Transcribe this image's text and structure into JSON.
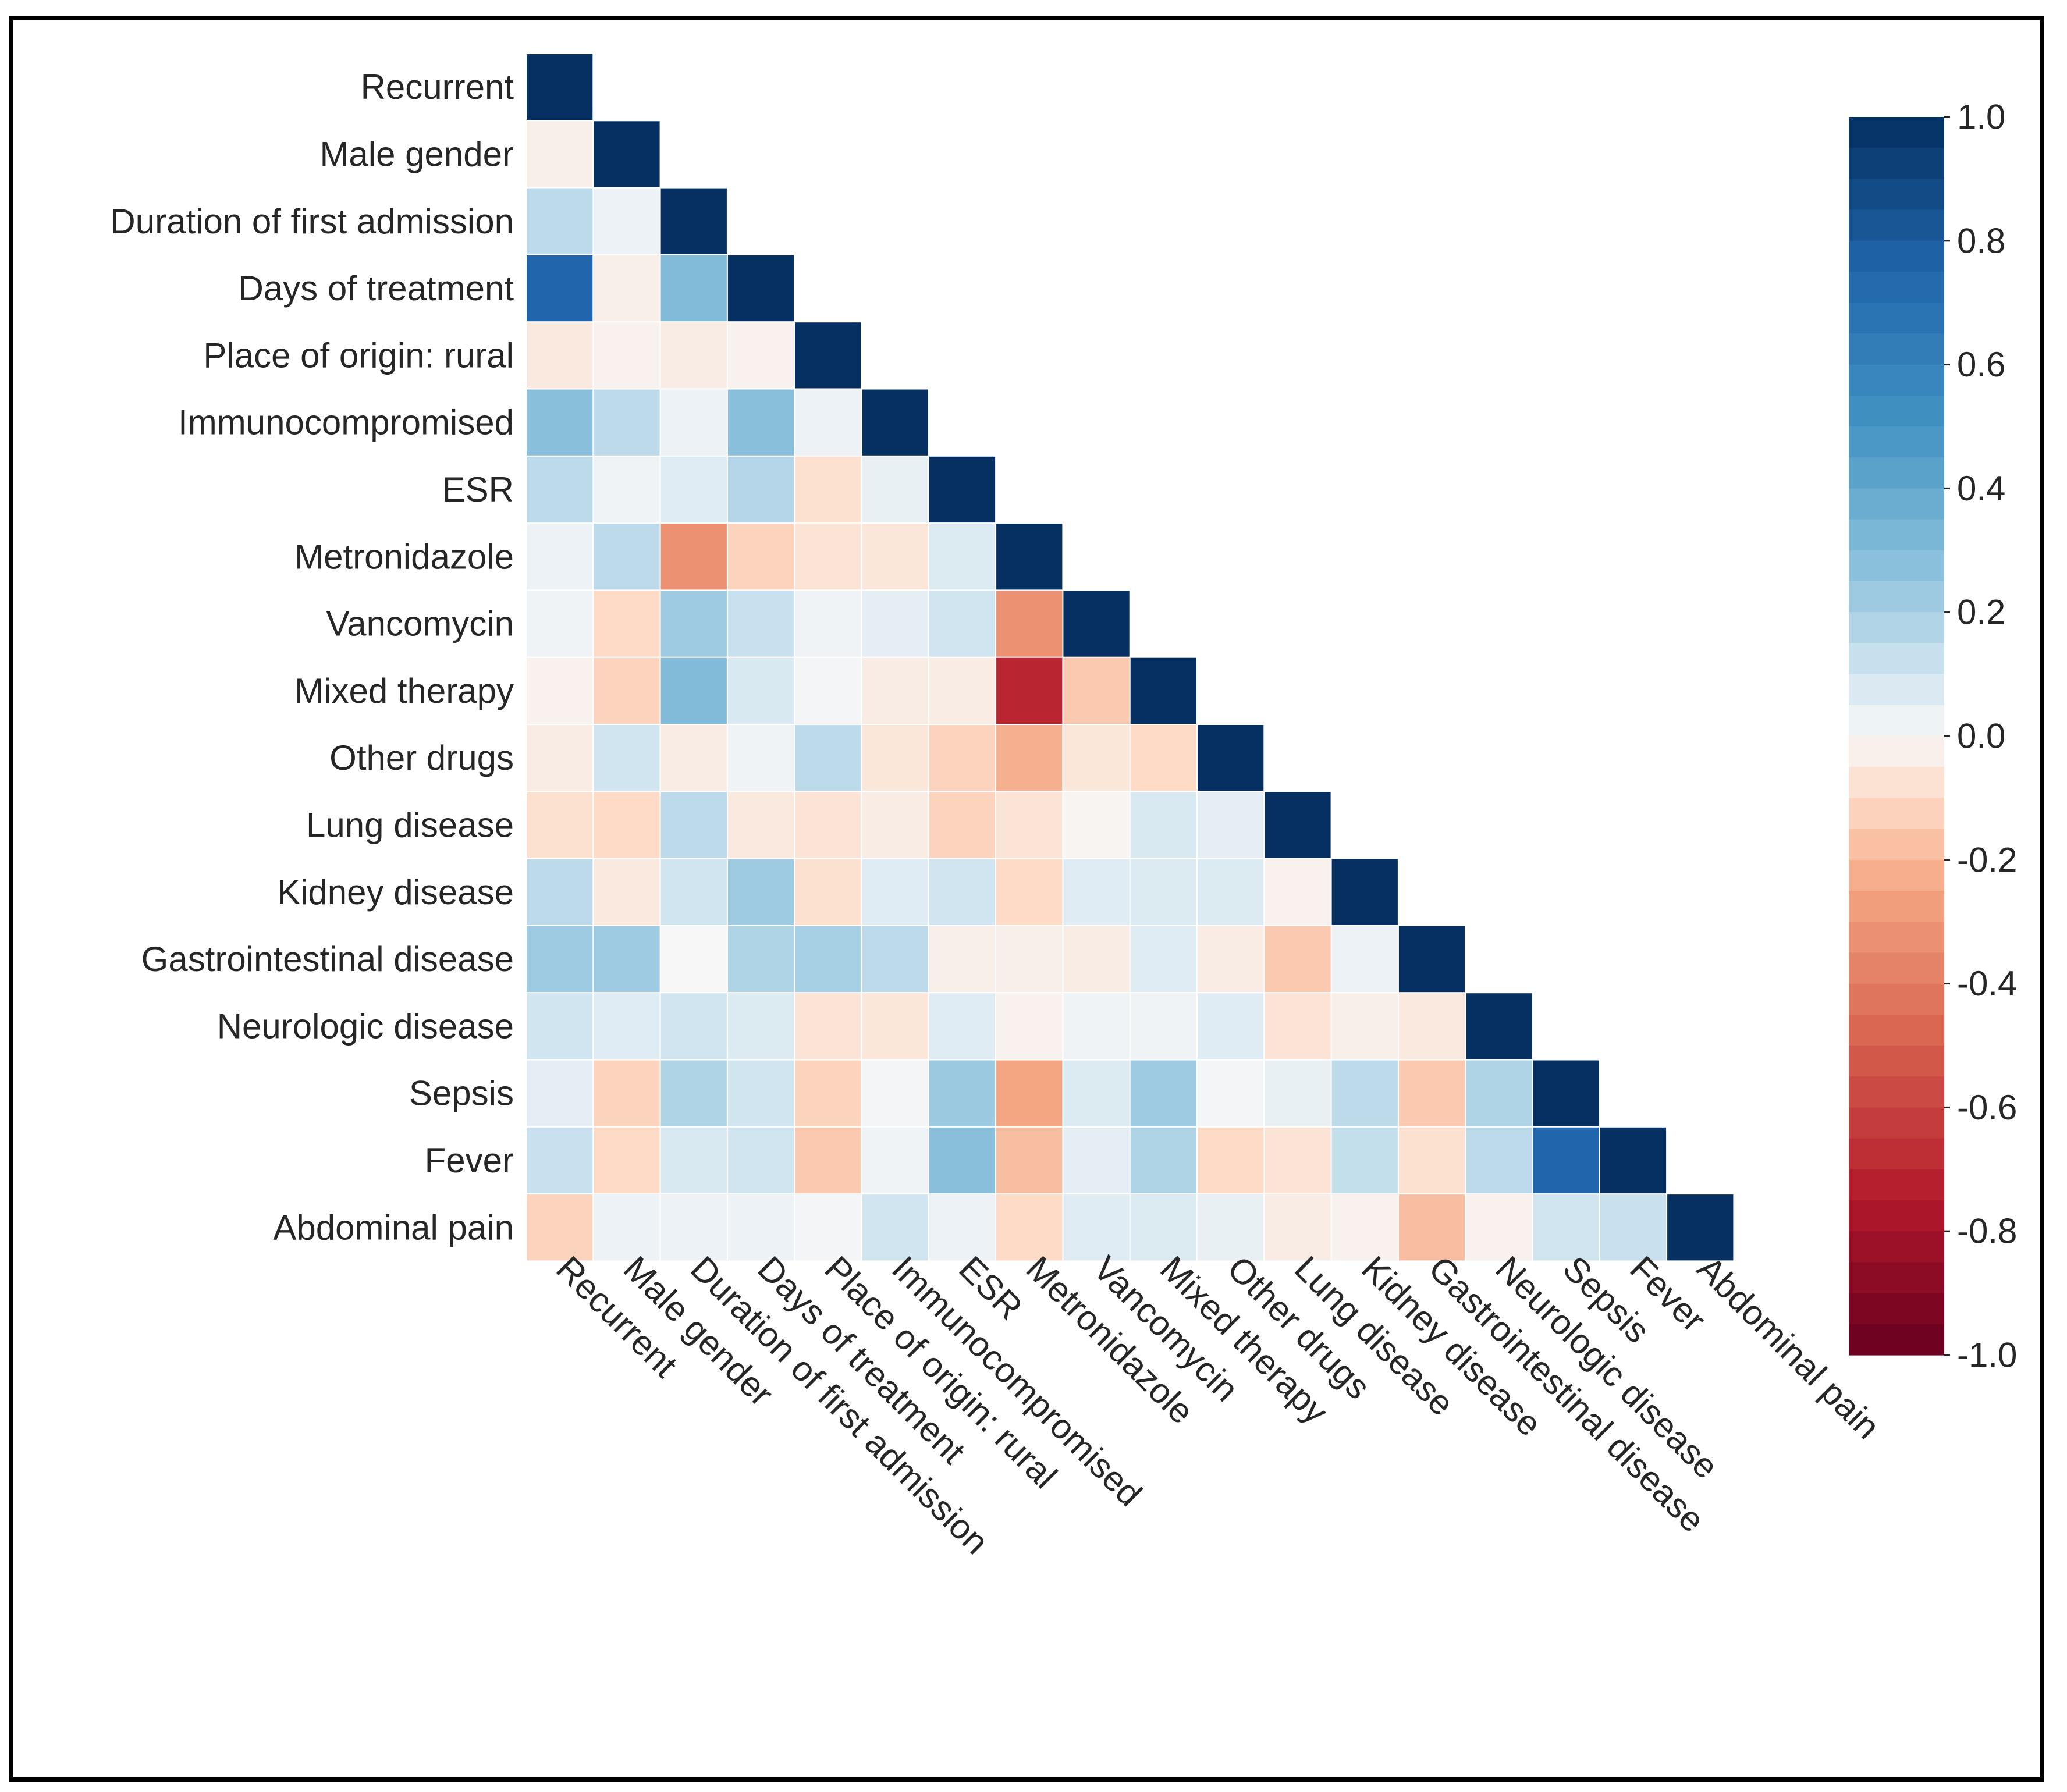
{
  "chart_data": {
    "type": "heatmap",
    "title": "",
    "xlabel": "",
    "ylabel": "",
    "variables": [
      "Recurrent",
      "Male gender",
      "Duration of first admission",
      "Days of treatment",
      "Place of origin: rural",
      "Immunocompromised",
      "ESR",
      "Metronidazole",
      "Vancomycin",
      "Mixed therapy",
      "Other drugs",
      "Lung disease",
      "Kidney disease",
      "Gastrointestinal disease",
      "Neurologic disease",
      "Sepsis",
      "Fever",
      "Abdominal pain"
    ],
    "mask": "upper triangle hidden (lower triangle including diagonal shown)",
    "values": [
      [
        1.0
      ],
      [
        -0.03,
        1.0
      ],
      [
        0.15,
        0.03,
        1.0
      ],
      [
        0.75,
        -0.03,
        0.3,
        1.0
      ],
      [
        -0.05,
        -0.02,
        -0.04,
        -0.02,
        1.0
      ],
      [
        0.28,
        0.15,
        0.03,
        0.28,
        0.03,
        1.0
      ],
      [
        0.15,
        0.02,
        0.06,
        0.17,
        -0.08,
        0.04,
        1.0
      ],
      [
        0.03,
        0.15,
        -0.32,
        -0.12,
        -0.07,
        -0.06,
        0.07,
        1.0
      ],
      [
        0.02,
        -0.1,
        0.22,
        0.12,
        0.02,
        0.05,
        0.1,
        -0.32,
        1.0
      ],
      [
        -0.02,
        -0.12,
        0.3,
        0.08,
        0.01,
        -0.04,
        -0.04,
        -0.7,
        -0.15,
        1.0
      ],
      [
        -0.04,
        0.1,
        -0.04,
        0.02,
        0.15,
        -0.06,
        -0.12,
        -0.22,
        -0.06,
        -0.1,
        1.0
      ],
      [
        -0.08,
        -0.1,
        0.15,
        -0.05,
        -0.07,
        -0.04,
        -0.12,
        -0.07,
        -0.01,
        0.08,
        0.05,
        1.0
      ],
      [
        0.15,
        -0.05,
        0.1,
        0.22,
        -0.08,
        0.06,
        0.1,
        -0.1,
        0.06,
        0.07,
        0.07,
        -0.02,
        1.0
      ],
      [
        0.22,
        0.22,
        0.0,
        0.18,
        0.2,
        0.15,
        -0.03,
        -0.03,
        -0.04,
        0.06,
        -0.04,
        -0.15,
        0.03,
        1.0
      ],
      [
        0.1,
        0.06,
        0.1,
        0.07,
        -0.07,
        -0.06,
        0.06,
        -0.02,
        0.02,
        0.02,
        0.06,
        -0.07,
        -0.03,
        -0.05,
        1.0
      ],
      [
        0.05,
        -0.12,
        0.18,
        0.1,
        -0.12,
        0.01,
        0.23,
        -0.25,
        0.07,
        0.22,
        0.01,
        0.04,
        0.15,
        -0.15,
        0.18,
        1.0
      ],
      [
        0.12,
        -0.1,
        0.08,
        0.1,
        -0.15,
        0.02,
        0.28,
        -0.18,
        0.05,
        0.18,
        -0.1,
        -0.07,
        0.13,
        -0.08,
        0.15,
        0.75,
        1.0
      ],
      [
        -0.12,
        0.03,
        0.03,
        0.03,
        0.01,
        0.1,
        0.03,
        -0.1,
        0.06,
        0.07,
        0.04,
        -0.04,
        -0.02,
        -0.18,
        -0.02,
        0.1,
        0.12,
        1.0
      ]
    ],
    "colormap": "RdBu",
    "vmin": -1.0,
    "vmax": 1.0,
    "colorbar": {
      "ticks": [
        1.0,
        0.8,
        0.6,
        0.4,
        0.2,
        0.0,
        -0.2,
        -0.4,
        -0.6,
        -0.8,
        -1.0
      ],
      "tick_labels": [
        "1.0",
        "0.8",
        "0.6",
        "0.4",
        "0.2",
        "0.0",
        "-0.2",
        "-0.4",
        "-0.6",
        "-0.8",
        "-1.0"
      ],
      "position": "right"
    }
  }
}
